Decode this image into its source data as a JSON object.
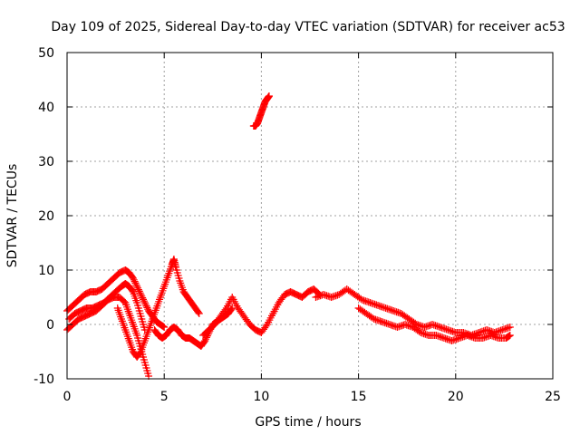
{
  "chart_data": {
    "type": "scatter",
    "title": "Day 109 of 2025, Sidereal Day-to-day VTEC variation (SDTVAR) for receiver ac53",
    "xlabel": "GPS time / hours",
    "ylabel": "SDTVAR / TECUs",
    "xlim": [
      0,
      25
    ],
    "ylim": [
      -10,
      50
    ],
    "x_ticks": [
      0,
      5,
      10,
      15,
      20,
      25
    ],
    "y_ticks": [
      -10,
      0,
      10,
      20,
      30,
      40,
      50
    ],
    "grid": true,
    "marker": "plus",
    "color": "#ff0000",
    "series": [
      {
        "name": "track-1",
        "x": [
          0.0,
          0.3,
          0.6,
          0.9,
          1.2,
          1.5,
          1.8,
          2.1,
          2.4,
          2.7,
          3.0,
          3.2,
          3.4,
          3.6,
          3.8,
          4.0,
          4.2,
          4.4,
          4.6,
          4.8,
          5.0
        ],
        "y": [
          2.5,
          3.5,
          4.5,
          5.5,
          6.0,
          6.0,
          6.5,
          7.5,
          8.5,
          9.5,
          10.0,
          9.5,
          8.5,
          7.0,
          5.5,
          4.0,
          2.5,
          1.5,
          0.5,
          0.0,
          -0.5
        ]
      },
      {
        "name": "track-2",
        "x": [
          0.0,
          0.3,
          0.6,
          0.9,
          1.2,
          1.5,
          1.8,
          2.1,
          2.4,
          2.7,
          3.0,
          3.2,
          3.4,
          3.6,
          3.8,
          4.0,
          4.2
        ],
        "y": [
          -1.0,
          0.0,
          1.0,
          1.5,
          2.0,
          2.5,
          3.5,
          4.5,
          5.0,
          5.0,
          4.0,
          2.0,
          0.0,
          -2.0,
          -4.5,
          -7.0,
          -9.5
        ]
      },
      {
        "name": "track-3",
        "x": [
          0.1,
          0.4,
          0.7,
          1.0,
          1.3,
          1.6,
          1.9,
          2.2,
          2.5,
          2.8,
          3.0,
          3.2,
          3.4,
          3.6,
          3.8,
          4.0
        ],
        "y": [
          1.0,
          2.0,
          2.5,
          3.0,
          3.0,
          3.5,
          4.0,
          5.0,
          6.0,
          7.0,
          7.5,
          7.0,
          6.0,
          4.0,
          1.5,
          -1.0
        ]
      },
      {
        "name": "track-4",
        "x": [
          2.6,
          2.8,
          3.0,
          3.2,
          3.4,
          3.6,
          3.8,
          4.0,
          4.2,
          4.4,
          4.6,
          4.8,
          5.0,
          5.2,
          5.4,
          5.5,
          5.6,
          5.8,
          6.0,
          6.2,
          6.4,
          6.6,
          6.8
        ],
        "y": [
          3.0,
          1.0,
          -1.0,
          -3.0,
          -5.0,
          -6.0,
          -5.0,
          -3.0,
          -1.0,
          1.0,
          3.0,
          5.0,
          7.0,
          9.0,
          11.0,
          12.0,
          10.5,
          8.0,
          6.0,
          5.0,
          4.0,
          3.0,
          2.0
        ]
      },
      {
        "name": "track-5",
        "x": [
          4.5,
          4.7,
          4.9,
          5.1,
          5.3,
          5.5,
          5.7,
          5.9,
          6.1,
          6.3,
          6.5,
          6.7,
          6.9,
          7.1,
          7.3,
          7.5,
          7.7,
          7.9,
          8.1,
          8.3,
          8.5
        ],
        "y": [
          -1.0,
          -2.0,
          -2.5,
          -2.0,
          -1.0,
          -0.5,
          -1.0,
          -2.0,
          -2.5,
          -2.5,
          -3.0,
          -3.5,
          -4.0,
          -3.0,
          -1.5,
          0.0,
          0.5,
          1.0,
          1.5,
          2.0,
          3.0
        ]
      },
      {
        "name": "track-6",
        "x": [
          7.0,
          7.3,
          7.6,
          7.9,
          8.2,
          8.5,
          8.8,
          9.1,
          9.4,
          9.7,
          10.0,
          10.3,
          10.6,
          10.9,
          11.2,
          11.5,
          11.8,
          12.1,
          12.4,
          12.7,
          13.0
        ],
        "y": [
          -2.0,
          -1.0,
          0.0,
          1.5,
          3.0,
          5.0,
          3.0,
          1.5,
          0.0,
          -1.0,
          -1.5,
          0.0,
          2.0,
          4.0,
          5.5,
          6.0,
          5.5,
          5.0,
          6.0,
          6.5,
          5.5
        ]
      },
      {
        "name": "track-7",
        "x": [
          12.8,
          13.2,
          13.6,
          14.0,
          14.4,
          14.8,
          15.2,
          15.6,
          16.0,
          16.4,
          16.8,
          17.2,
          17.6,
          18.0,
          18.4,
          18.8,
          19.2,
          19.6,
          20.0,
          20.4,
          20.8,
          21.2,
          21.6,
          22.0,
          22.4,
          22.8
        ],
        "y": [
          5.0,
          5.5,
          5.0,
          5.5,
          6.5,
          5.5,
          4.5,
          4.0,
          3.5,
          3.0,
          2.5,
          2.0,
          1.0,
          0.0,
          -0.5,
          0.0,
          -0.5,
          -1.0,
          -1.5,
          -1.5,
          -2.0,
          -1.5,
          -1.0,
          -1.5,
          -1.0,
          -0.5
        ]
      },
      {
        "name": "track-8",
        "x": [
          15.0,
          15.4,
          15.8,
          16.2,
          16.6,
          17.0,
          17.4,
          17.8,
          18.2,
          18.6,
          19.0,
          19.4,
          19.8,
          20.2,
          20.6,
          21.0,
          21.4,
          21.8,
          22.2,
          22.6,
          22.8
        ],
        "y": [
          3.0,
          2.0,
          1.0,
          0.5,
          0.0,
          -0.5,
          0.0,
          -0.5,
          -1.5,
          -2.0,
          -2.0,
          -2.5,
          -3.0,
          -2.5,
          -2.0,
          -2.5,
          -2.5,
          -2.0,
          -2.5,
          -2.5,
          -2.0
        ]
      },
      {
        "name": "track-9",
        "x": [
          9.6,
          9.7,
          9.8,
          9.9,
          10.0,
          10.1,
          10.2,
          10.3,
          10.4
        ],
        "y": [
          36.5,
          36.5,
          37.0,
          38.0,
          39.0,
          40.0,
          41.0,
          41.5,
          42.0
        ]
      }
    ]
  }
}
